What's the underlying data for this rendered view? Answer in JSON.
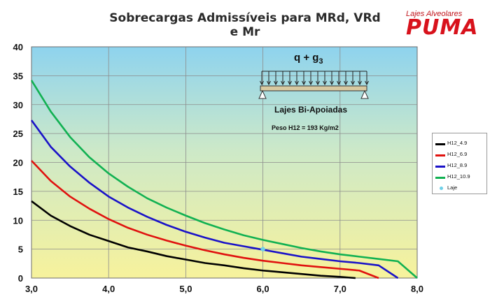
{
  "chart_data": {
    "type": "line",
    "title": "Sobrecargas Admissíveis para MRd, VRd e Mr",
    "xlabel": "",
    "ylabel": "",
    "xlim": [
      3.0,
      8.0
    ],
    "ylim": [
      0,
      40
    ],
    "x_ticks": [
      "3,0",
      "4,0",
      "5,0",
      "6,0",
      "7,0",
      "8,0"
    ],
    "y_ticks": [
      "0",
      "5",
      "10",
      "15",
      "20",
      "25",
      "30",
      "35",
      "40"
    ],
    "grid": true,
    "legend_position": "right",
    "series": [
      {
        "name": "H12_4.9",
        "color": "#000000",
        "points": [
          [
            3.0,
            13.3
          ],
          [
            3.25,
            10.8
          ],
          [
            3.5,
            9.0
          ],
          [
            3.75,
            7.5
          ],
          [
            4.0,
            6.4
          ],
          [
            4.25,
            5.3
          ],
          [
            4.5,
            4.6
          ],
          [
            4.75,
            3.8
          ],
          [
            5.0,
            3.2
          ],
          [
            5.25,
            2.6
          ],
          [
            5.5,
            2.2
          ],
          [
            5.75,
            1.7
          ],
          [
            6.0,
            1.3
          ],
          [
            6.25,
            1.0
          ],
          [
            6.5,
            0.7
          ],
          [
            6.75,
            0.4
          ],
          [
            7.0,
            0.2
          ],
          [
            7.2,
            0.0
          ]
        ]
      },
      {
        "name": "H12_6.9",
        "color": "#e0120f",
        "points": [
          [
            3.0,
            20.3
          ],
          [
            3.25,
            16.8
          ],
          [
            3.5,
            14.1
          ],
          [
            3.75,
            12.0
          ],
          [
            4.0,
            10.2
          ],
          [
            4.25,
            8.7
          ],
          [
            4.5,
            7.5
          ],
          [
            4.75,
            6.5
          ],
          [
            5.0,
            5.6
          ],
          [
            5.25,
            4.8
          ],
          [
            5.5,
            4.1
          ],
          [
            5.75,
            3.5
          ],
          [
            6.0,
            3.0
          ],
          [
            6.25,
            2.6
          ],
          [
            6.5,
            2.2
          ],
          [
            6.75,
            1.9
          ],
          [
            7.0,
            1.6
          ],
          [
            7.25,
            1.3
          ],
          [
            7.5,
            0.0
          ]
        ]
      },
      {
        "name": "H12_8.9",
        "color": "#1a12c8",
        "points": [
          [
            3.0,
            27.3
          ],
          [
            3.25,
            22.7
          ],
          [
            3.5,
            19.3
          ],
          [
            3.75,
            16.5
          ],
          [
            4.0,
            14.1
          ],
          [
            4.25,
            12.2
          ],
          [
            4.5,
            10.6
          ],
          [
            4.75,
            9.2
          ],
          [
            5.0,
            8.0
          ],
          [
            5.25,
            7.0
          ],
          [
            5.5,
            6.1
          ],
          [
            5.75,
            5.5
          ],
          [
            6.0,
            4.9
          ],
          [
            6.25,
            4.3
          ],
          [
            6.5,
            3.7
          ],
          [
            6.75,
            3.3
          ],
          [
            7.0,
            2.9
          ],
          [
            7.25,
            2.6
          ],
          [
            7.5,
            2.2
          ],
          [
            7.75,
            0.0
          ]
        ]
      },
      {
        "name": "H12_10.9",
        "color": "#11b152",
        "points": [
          [
            3.0,
            34.2
          ],
          [
            3.25,
            28.8
          ],
          [
            3.5,
            24.4
          ],
          [
            3.75,
            20.9
          ],
          [
            4.0,
            18.1
          ],
          [
            4.25,
            15.8
          ],
          [
            4.5,
            13.8
          ],
          [
            4.75,
            12.2
          ],
          [
            5.0,
            10.8
          ],
          [
            5.25,
            9.5
          ],
          [
            5.5,
            8.4
          ],
          [
            5.75,
            7.4
          ],
          [
            6.0,
            6.6
          ],
          [
            6.25,
            5.9
          ],
          [
            6.5,
            5.2
          ],
          [
            6.75,
            4.6
          ],
          [
            7.0,
            4.1
          ],
          [
            7.25,
            3.7
          ],
          [
            7.5,
            3.3
          ],
          [
            7.75,
            2.9
          ],
          [
            8.0,
            0.0
          ]
        ]
      },
      {
        "name": "Laje",
        "color": "#6fd0e8",
        "marker": "point",
        "points": [
          [
            6.0,
            5.0
          ]
        ]
      }
    ],
    "diagram": {
      "load_label": "q + g",
      "load_subscript": "3",
      "support_label": "Lajes Bi-Apoiadas",
      "weight_label": "Peso H12  = 193 Kg/m2"
    }
  },
  "brand": {
    "tagline": "Lajes Alveolares",
    "name": "PUMA",
    "color": "#d8121c"
  }
}
